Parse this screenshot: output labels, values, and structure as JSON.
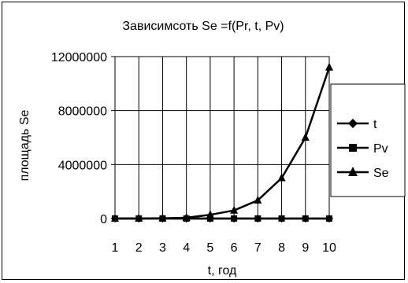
{
  "chart_data": {
    "type": "line",
    "title": "Зависимсоть Se =f(Pr, t, Pv)",
    "xlabel": "t, год",
    "ylabel": "площадь Se",
    "categories": [
      "1",
      "2",
      "3",
      "4",
      "5",
      "6",
      "7",
      "8",
      "9",
      "10"
    ],
    "ylim": [
      0,
      12000000
    ],
    "yticks": [
      0,
      4000000,
      8000000,
      12000000
    ],
    "ytick_labels": [
      "0",
      "4000000",
      "8000000",
      "12000000"
    ],
    "grid": true,
    "legend_position": "right",
    "series": [
      {
        "name": "t",
        "marker": "diamond",
        "values": [
          1,
          2,
          3,
          4,
          5,
          6,
          7,
          8,
          9,
          10
        ]
      },
      {
        "name": "Pv",
        "marker": "square",
        "values": [
          0,
          0,
          0,
          0,
          0,
          0,
          0,
          0,
          0,
          0
        ]
      },
      {
        "name": "Se",
        "marker": "triangle",
        "values": [
          0,
          5000,
          20000,
          60000,
          280000,
          600000,
          1350000,
          3000000,
          6000000,
          11200000
        ]
      }
    ]
  }
}
